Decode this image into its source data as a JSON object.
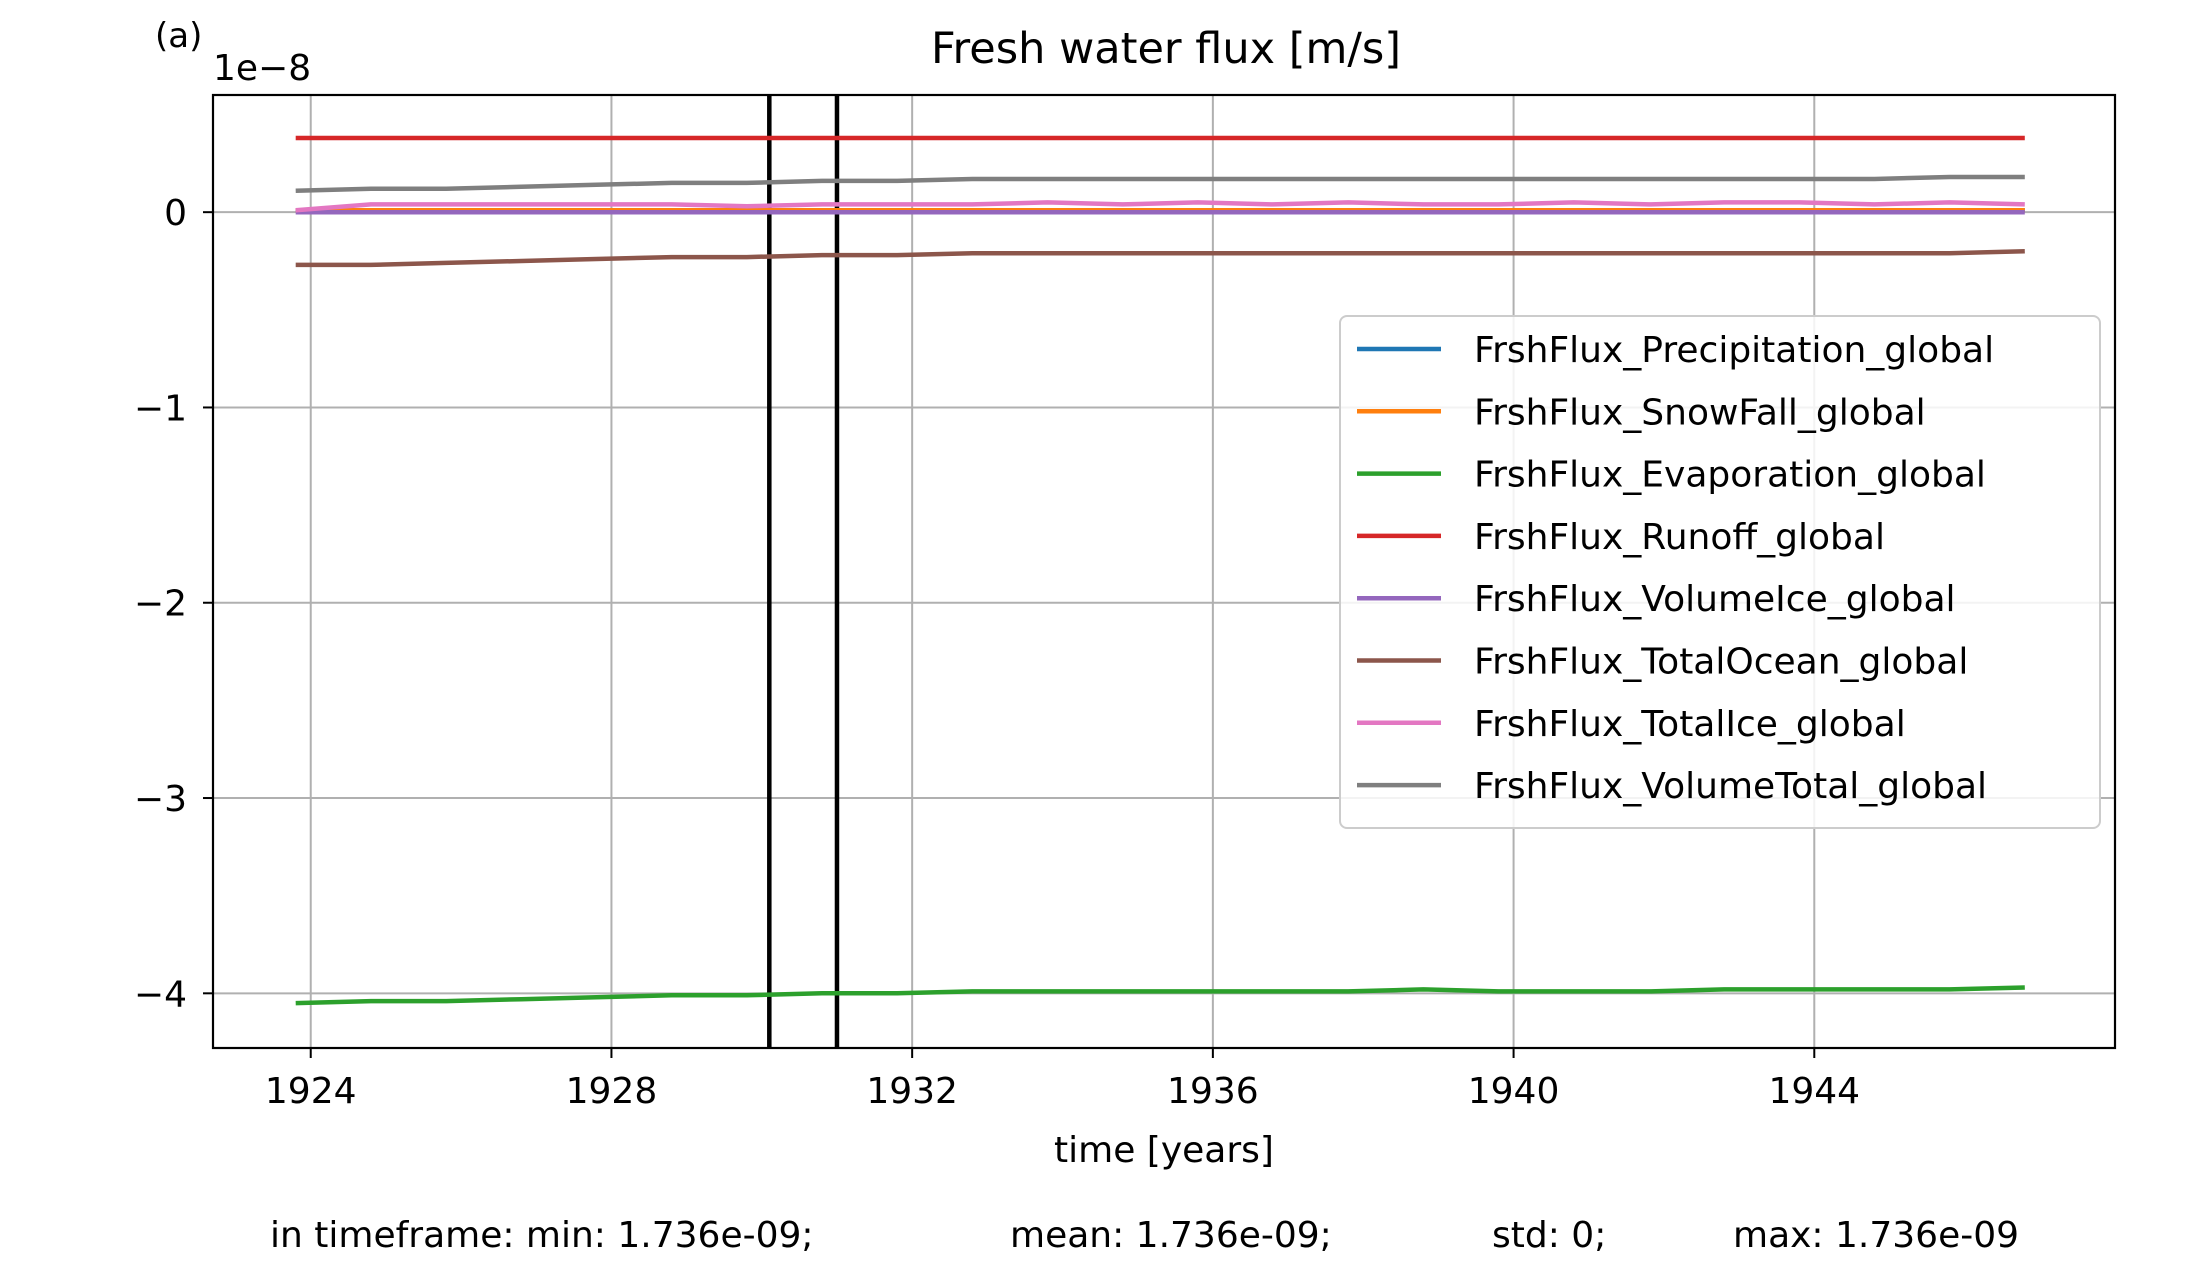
{
  "panel_label": "(a)",
  "chart_data": {
    "type": "line",
    "title": "Fresh water flux [m/s]",
    "xlabel": "time [years]",
    "ylabel": "",
    "y_scale_label": "1e−8",
    "y_scale_factor": 1e-08,
    "xlim": [
      1922.7,
      1948.0
    ],
    "ylim": [
      -4.28,
      0.6
    ],
    "xticks": [
      1924,
      1928,
      1932,
      1936,
      1940,
      1944
    ],
    "xtick_labels": [
      "1924",
      "1928",
      "1932",
      "1936",
      "1940",
      "1944"
    ],
    "yticks": [
      0,
      -1,
      -2,
      -3,
      -4
    ],
    "ytick_labels": [
      "0",
      "−1",
      "−2",
      "−3",
      "−4"
    ],
    "grid": true,
    "legend_position": "center-right",
    "vlines": [
      1930.1,
      1931.0
    ],
    "x": [
      1923.8,
      1924.8,
      1925.8,
      1926.8,
      1927.8,
      1928.8,
      1929.8,
      1930.8,
      1931.8,
      1932.8,
      1933.8,
      1934.8,
      1935.8,
      1936.8,
      1937.8,
      1938.8,
      1939.8,
      1940.8,
      1941.8,
      1942.8,
      1943.8,
      1944.8,
      1945.8,
      1946.8
    ],
    "series": [
      {
        "name": "FrshFlux_Precipitation_global",
        "color": "#1f77b4",
        "values": [
          0.01,
          0.01,
          0.01,
          0.01,
          0.01,
          0.01,
          0.01,
          0.01,
          0.01,
          0.01,
          0.01,
          0.01,
          0.01,
          0.01,
          0.01,
          0.01,
          0.01,
          0.01,
          0.01,
          0.01,
          0.01,
          0.01,
          0.01,
          0.01
        ]
      },
      {
        "name": "FrshFlux_SnowFall_global",
        "color": "#ff7f0e",
        "values": [
          0.01,
          0.01,
          0.01,
          0.01,
          0.01,
          0.01,
          0.01,
          0.01,
          0.01,
          0.01,
          0.01,
          0.01,
          0.01,
          0.01,
          0.01,
          0.01,
          0.01,
          0.01,
          0.01,
          0.01,
          0.01,
          0.01,
          0.01,
          0.01
        ]
      },
      {
        "name": "FrshFlux_Evaporation_global",
        "color": "#2ca02c",
        "values": [
          -4.05,
          -4.04,
          -4.04,
          -4.03,
          -4.02,
          -4.01,
          -4.01,
          -4.0,
          -4.0,
          -3.99,
          -3.99,
          -3.99,
          -3.99,
          -3.99,
          -3.99,
          -3.98,
          -3.99,
          -3.99,
          -3.99,
          -3.98,
          -3.98,
          -3.98,
          -3.98,
          -3.97
        ]
      },
      {
        "name": "FrshFlux_Runoff_global",
        "color": "#d62728",
        "values": [
          0.38,
          0.38,
          0.38,
          0.38,
          0.38,
          0.38,
          0.38,
          0.38,
          0.38,
          0.38,
          0.38,
          0.38,
          0.38,
          0.38,
          0.38,
          0.38,
          0.38,
          0.38,
          0.38,
          0.38,
          0.38,
          0.38,
          0.38,
          0.38
        ]
      },
      {
        "name": "FrshFlux_VolumeIce_global",
        "color": "#9467bd",
        "values": [
          0.0,
          0.0,
          0.0,
          0.0,
          0.0,
          0.0,
          0.0,
          0.0,
          0.0,
          0.0,
          0.0,
          0.0,
          0.0,
          0.0,
          0.0,
          0.0,
          0.0,
          0.0,
          0.0,
          0.0,
          0.0,
          0.0,
          0.0,
          0.0
        ]
      },
      {
        "name": "FrshFlux_TotalOcean_global",
        "color": "#8c564b",
        "values": [
          -0.27,
          -0.27,
          -0.26,
          -0.25,
          -0.24,
          -0.23,
          -0.23,
          -0.22,
          -0.22,
          -0.21,
          -0.21,
          -0.21,
          -0.21,
          -0.21,
          -0.21,
          -0.21,
          -0.21,
          -0.21,
          -0.21,
          -0.21,
          -0.21,
          -0.21,
          -0.21,
          -0.2
        ]
      },
      {
        "name": "FrshFlux_TotalIce_global",
        "color": "#e377c2",
        "values": [
          0.01,
          0.04,
          0.04,
          0.04,
          0.04,
          0.04,
          0.03,
          0.04,
          0.04,
          0.04,
          0.05,
          0.04,
          0.05,
          0.04,
          0.05,
          0.04,
          0.04,
          0.05,
          0.04,
          0.05,
          0.05,
          0.04,
          0.05,
          0.04
        ]
      },
      {
        "name": "FrshFlux_VolumeTotal_global",
        "color": "#7f7f7f",
        "values": [
          0.11,
          0.12,
          0.12,
          0.13,
          0.14,
          0.15,
          0.15,
          0.16,
          0.16,
          0.17,
          0.17,
          0.17,
          0.17,
          0.17,
          0.17,
          0.17,
          0.17,
          0.17,
          0.17,
          0.17,
          0.17,
          0.17,
          0.18,
          0.18
        ]
      }
    ]
  },
  "footer": {
    "min_text": "in timeframe: min: 1.736e-09;",
    "mean_text": "mean: 1.736e-09;",
    "std_text": "std: 0;",
    "max_text": "max: 1.736e-09"
  }
}
